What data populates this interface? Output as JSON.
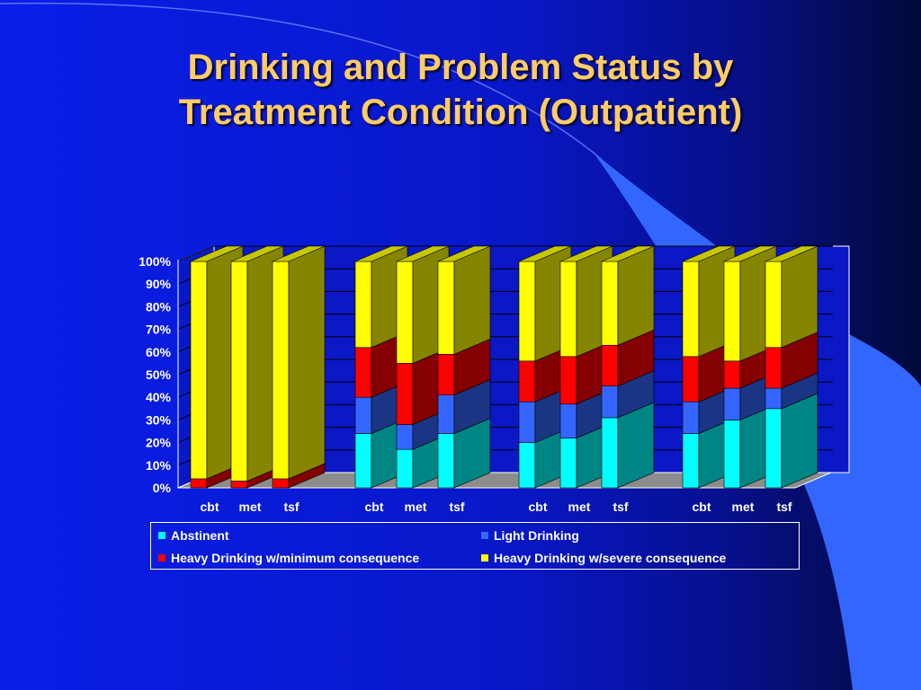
{
  "slide": {
    "title_line1": "Drinking and Problem Status by",
    "title_line2": "Treatment Condition (Outpatient)"
  },
  "colors": {
    "title": "#ffcc66",
    "background_left": "#0a1ee8",
    "background_right": "#020a3a",
    "accent_shape": "#3366ff",
    "Abstinent": "#00ffff",
    "Light Drinking": "#3366ff",
    "Heavy Drinking w/minimum consequence": "#ff0000",
    "Heavy Drinking w/severe consequence": "#ffff00"
  },
  "chart_data": {
    "type": "bar",
    "stacked": true,
    "three_d": true,
    "title": "",
    "xlabel": "",
    "ylabel": "",
    "ylim": [
      0,
      100
    ],
    "y_ticks": [
      "0%",
      "10%",
      "20%",
      "30%",
      "40%",
      "50%",
      "60%",
      "70%",
      "80%",
      "90%",
      "100%"
    ],
    "grid": true,
    "legend_position": "bottom",
    "categories": [
      "cbt",
      "met",
      "tsf",
      "cbt",
      "met",
      "tsf",
      "cbt",
      "met",
      "tsf",
      "cbt",
      "met",
      "tsf"
    ],
    "series": [
      {
        "name": "Abstinent",
        "values": [
          0,
          0,
          0,
          24,
          17,
          24,
          20,
          22,
          31,
          24,
          30,
          35
        ]
      },
      {
        "name": "Light Drinking",
        "values": [
          0,
          0,
          0,
          16,
          11,
          17,
          18,
          15,
          14,
          14,
          14,
          9
        ]
      },
      {
        "name": "Heavy Drinking w/minimum consequence",
        "values": [
          4,
          3,
          4,
          22,
          27,
          18,
          18,
          21,
          18,
          20,
          12,
          18
        ]
      },
      {
        "name": "Heavy Drinking w/severe consequence",
        "values": [
          96,
          97,
          96,
          38,
          45,
          41,
          44,
          42,
          37,
          42,
          44,
          38
        ]
      }
    ]
  }
}
